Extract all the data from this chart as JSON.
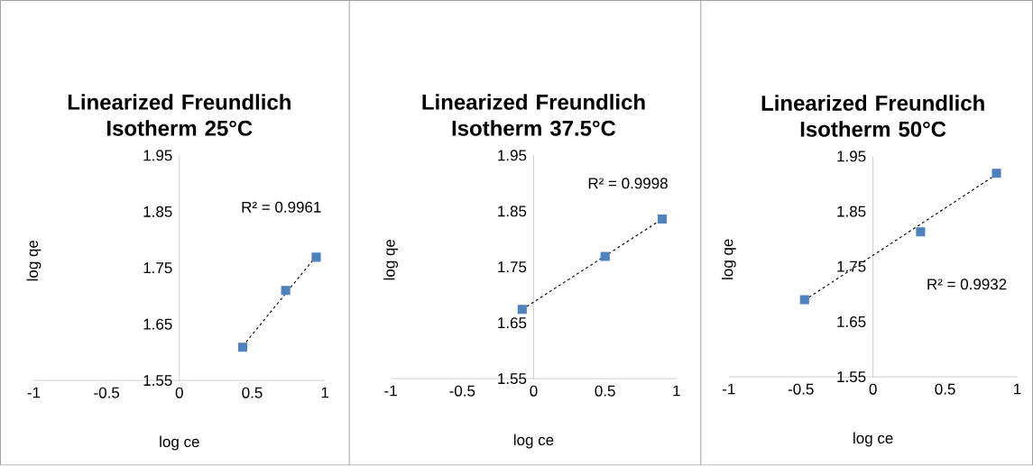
{
  "chart_data": [
    {
      "type": "scatter",
      "title": "Linearized Freundlich Isotherm 25°C",
      "xlabel": "log ce",
      "ylabel": "log qe",
      "xlim": [
        -1,
        1
      ],
      "ylim": [
        1.55,
        1.95
      ],
      "xticks": [
        -1,
        -0.5,
        0,
        0.5,
        1
      ],
      "yticks": [
        1.55,
        1.65,
        1.75,
        1.85,
        1.95
      ],
      "series": [
        {
          "color": "#4f81bd",
          "marker": "square",
          "x": [
            0.435,
            0.73,
            0.94
          ],
          "values": [
            1.609,
            1.71,
            1.769
          ]
        },
        {
          "type": "line",
          "color": "#000000",
          "line_style": "dashed",
          "marker": "none",
          "x": [
            0.435,
            0.94
          ],
          "values": [
            1.611,
            1.771
          ]
        }
      ],
      "annotations": [
        "R² = 0.9961"
      ]
    },
    {
      "type": "scatter",
      "title": "Linearized Freundlich Isotherm 37.5°C",
      "xlabel": "log ce",
      "ylabel": "log qe",
      "xlim": [
        -1,
        1
      ],
      "ylim": [
        1.55,
        1.95
      ],
      "xticks": [
        -1,
        -0.5,
        0,
        0.5,
        1
      ],
      "yticks": [
        1.55,
        1.65,
        1.75,
        1.85,
        1.95
      ],
      "series": [
        {
          "color": "#4f81bd",
          "marker": "square",
          "x": [
            -0.08,
            0.5,
            0.9
          ],
          "values": [
            1.674,
            1.769,
            1.836
          ]
        },
        {
          "type": "line",
          "color": "#000000",
          "line_style": "dashed",
          "marker": "none",
          "x": [
            -0.08,
            0.9
          ],
          "values": [
            1.674,
            1.836
          ]
        }
      ],
      "annotations": [
        "R² = 0.9998"
      ]
    },
    {
      "type": "scatter",
      "title": "Linearized Freundlich Isotherm 50°C",
      "xlabel": "log ce",
      "ylabel": "log qe",
      "xlim": [
        -1,
        1
      ],
      "ylim": [
        1.55,
        1.95
      ],
      "xticks": [
        -1,
        -0.5,
        0,
        0.5,
        1
      ],
      "yticks": [
        1.55,
        1.65,
        1.75,
        1.85,
        1.95
      ],
      "series": [
        {
          "color": "#4f81bd",
          "marker": "square",
          "x": [
            -0.475,
            0.33,
            0.856
          ],
          "values": [
            1.69,
            1.813,
            1.919
          ]
        },
        {
          "type": "line",
          "color": "#000000",
          "line_style": "dashed",
          "marker": "none",
          "x": [
            -0.475,
            0.856
          ],
          "values": [
            1.689,
            1.917
          ]
        }
      ],
      "annotations": [
        "R² = 0.9932"
      ]
    }
  ]
}
